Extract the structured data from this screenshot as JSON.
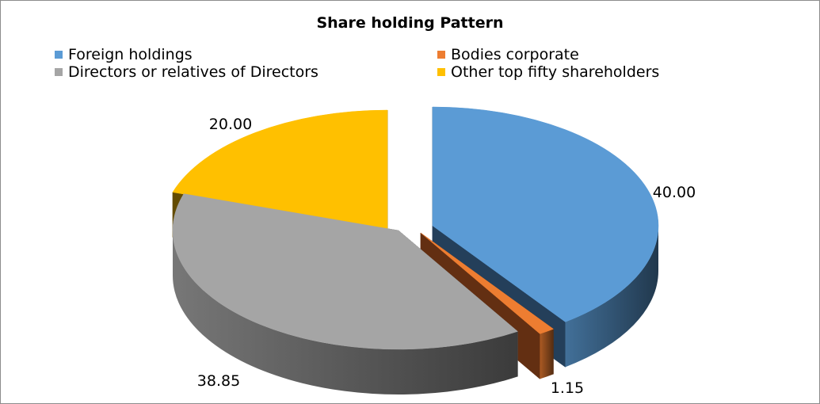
{
  "chart_data": {
    "type": "pie",
    "title": "Share holding  Pattern",
    "legend_position": "top",
    "slices": [
      {
        "name": "Foreign holdings",
        "value": 40.0,
        "label": "40.00",
        "color": "#5B9BD5",
        "side_color": "#243F5A"
      },
      {
        "name": "Bodies corporate",
        "value": 1.15,
        "label": "1.15",
        "color": "#ED7D31",
        "side_color": "#632F12"
      },
      {
        "name": "Directors or relatives of Directors",
        "value": 38.85,
        "label": "38.85",
        "color": "#A5A5A5",
        "side_color": "#5A5A5A"
      },
      {
        "name": "Other top fifty shareholders",
        "value": 20.0,
        "label": "20.00",
        "color": "#FFC000",
        "side_color": "#634B00"
      }
    ]
  }
}
